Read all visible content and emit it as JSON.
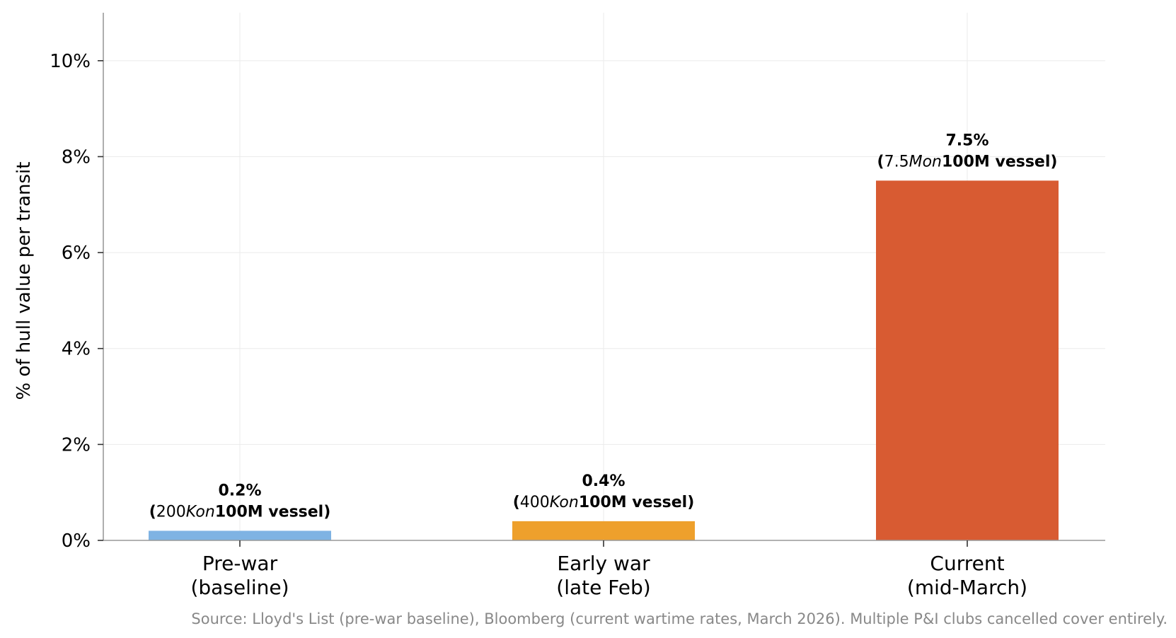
{
  "chart_data": {
    "type": "bar",
    "categories": [
      [
        "Pre-war",
        "(baseline)"
      ],
      [
        "Early war",
        "(late Feb)"
      ],
      [
        "Current",
        "(mid-March)"
      ]
    ],
    "values": [
      0.2,
      0.4,
      7.5
    ],
    "value_labels": [
      "0.2%",
      "0.4%",
      "7.5%"
    ],
    "value_sublabels": [
      [
        "(",
        "200",
        "K",
        "on",
        "100M vessel)"
      ],
      [
        "(",
        "400",
        "K",
        "on",
        "100M vessel)"
      ],
      [
        "(",
        "7.5",
        "M",
        "on",
        "100M vessel)"
      ]
    ],
    "colors": [
      "#7fb3e3",
      "#eea02c",
      "#d85b32"
    ],
    "ylabel": "% of hull value per transit",
    "xlabel": "",
    "ylim": [
      0,
      11
    ],
    "yticks": [
      0,
      2,
      4,
      6,
      8,
      10
    ],
    "ytick_labels": [
      "0%",
      "2%",
      "4%",
      "6%",
      "8%",
      "10%"
    ],
    "grid": true,
    "source": "Source: Lloyd's List (pre-war baseline), Bloomberg (current wartime rates, March 2026). Multiple P&I clubs cancelled cover entirely."
  }
}
